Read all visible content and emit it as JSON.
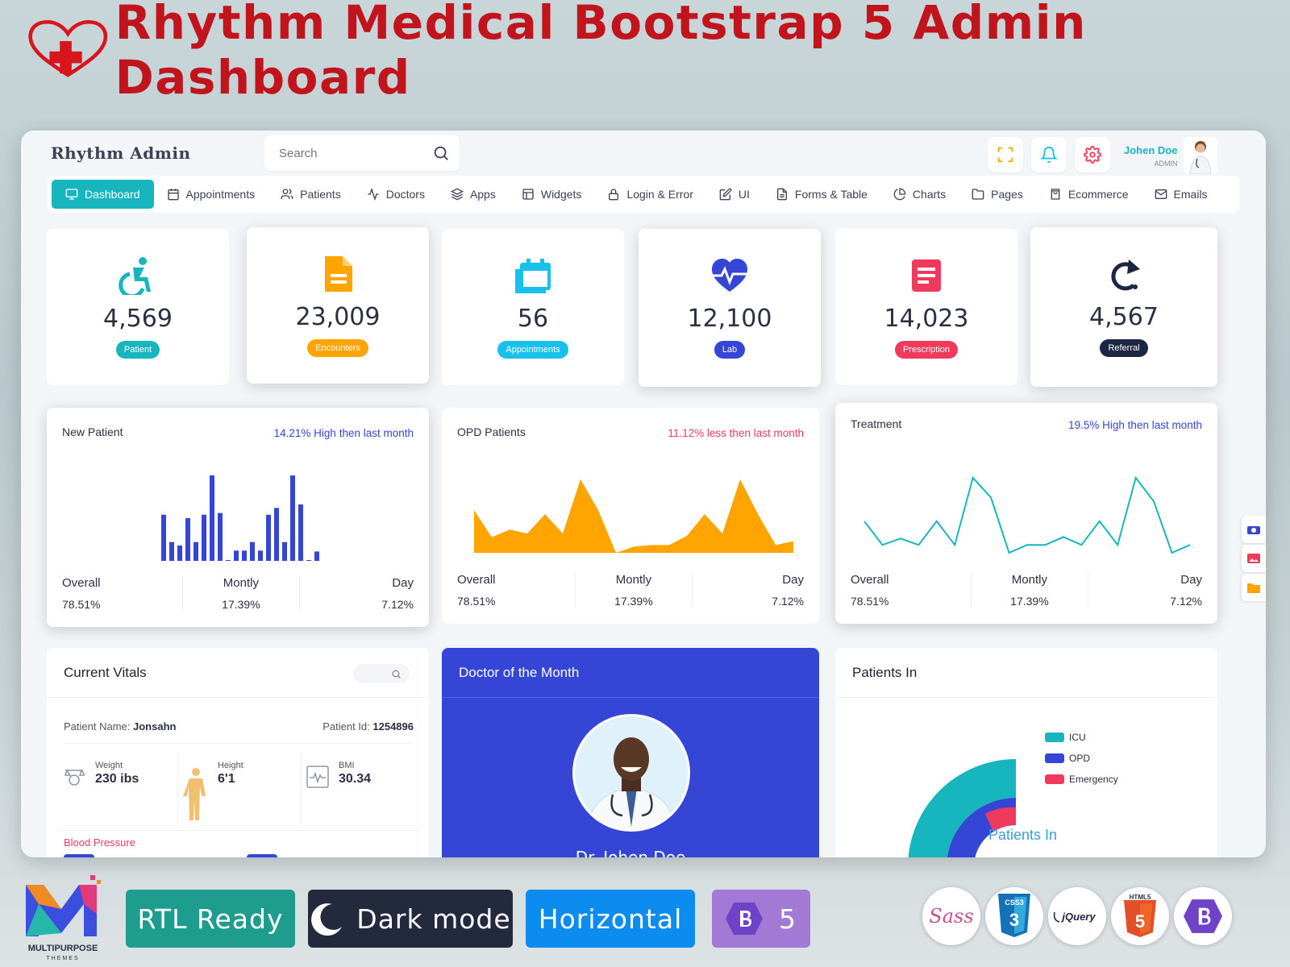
{
  "banner": {
    "title": "Rhythm Medical Bootstrap 5 Admin Dashboard"
  },
  "header": {
    "brand": "Rhythm Admin",
    "search_placeholder": "Search",
    "user_name": "Johen Doe",
    "user_role": "ADMIN"
  },
  "nav": [
    {
      "label": "Dashboard",
      "icon": "monitor-icon",
      "active": true
    },
    {
      "label": "Appointments",
      "icon": "calendar-icon"
    },
    {
      "label": "Patients",
      "icon": "users-icon"
    },
    {
      "label": "Doctors",
      "icon": "activity-icon"
    },
    {
      "label": "Apps",
      "icon": "layers-icon"
    },
    {
      "label": "Widgets",
      "icon": "grid-icon"
    },
    {
      "label": "Login & Error",
      "icon": "lock-icon"
    },
    {
      "label": "UI",
      "icon": "edit-icon"
    },
    {
      "label": "Forms & Table",
      "icon": "file-icon"
    },
    {
      "label": "Charts",
      "icon": "pie-chart-icon"
    },
    {
      "label": "Pages",
      "icon": "folder-icon"
    },
    {
      "label": "Ecommerce",
      "icon": "bag-icon"
    },
    {
      "label": "Emails",
      "icon": "mail-icon"
    }
  ],
  "stats": [
    {
      "value": "4,569",
      "label": "Patient",
      "color": "#17b6bf",
      "icon": "wheelchair-icon"
    },
    {
      "value": "23,009",
      "label": "Encounters",
      "color": "#ffa400",
      "icon": "document-icon"
    },
    {
      "value": "56",
      "label": "Appointments",
      "color": "#19c0ec",
      "icon": "calendar-icon"
    },
    {
      "value": "12,100",
      "label": "Lab",
      "color": "#3545d6",
      "icon": "heartbeat-icon"
    },
    {
      "value": "14,023",
      "label": "Prescription",
      "color": "#ef3a5d",
      "icon": "prescription-icon"
    },
    {
      "value": "4,567",
      "label": "Referral",
      "color": "#1d2642",
      "icon": "redo-icon"
    }
  ],
  "charts": {
    "new_patient": {
      "title": "New Patient",
      "subtitle": "14.21% High then last month",
      "subtitle_color": "#3545d6",
      "overall_label": "Overall",
      "overall": "78.51%",
      "monthly_label": "Montly",
      "monthly": "17.39%",
      "day_label": "Day",
      "day": "7.12%"
    },
    "opd": {
      "title": "OPD Patients",
      "subtitle": "11.12% less then last month",
      "subtitle_color": "#ef3a5d",
      "overall_label": "Overall",
      "overall": "78.51%",
      "monthly_label": "Montly",
      "monthly": "17.39%",
      "day_label": "Day",
      "day": "7.12%"
    },
    "treatment": {
      "title": "Treatment",
      "subtitle": "19.5% High then last month",
      "subtitle_color": "#3545d6",
      "overall_label": "Overall",
      "overall": "78.51%",
      "monthly_label": "Montly",
      "monthly": "17.39%",
      "day_label": "Day",
      "day": "7.12%"
    }
  },
  "chart_data": [
    {
      "type": "bar",
      "title": "New Patient",
      "color": "#3545d6",
      "values": [
        54,
        22,
        18,
        50,
        22,
        54,
        100,
        56,
        0,
        12,
        12,
        22,
        12,
        54,
        62,
        22,
        100,
        66,
        0,
        11
      ]
    },
    {
      "type": "area",
      "title": "OPD Patients",
      "color": "#ffa400",
      "values": [
        55,
        20,
        30,
        25,
        50,
        25,
        95,
        55,
        0,
        8,
        10,
        10,
        22,
        50,
        25,
        95,
        50,
        10,
        15
      ]
    },
    {
      "type": "line",
      "title": "Treatment",
      "color": "#17b6bf",
      "values": [
        40,
        10,
        18,
        10,
        40,
        10,
        95,
        70,
        0,
        10,
        10,
        20,
        10,
        40,
        10,
        95,
        65,
        0,
        10
      ]
    }
  ],
  "vitals": {
    "title": "Current Vitals",
    "patient_name_label": "Patient Name:",
    "patient_name": "Jonsahn",
    "patient_id_label": "Patient Id:",
    "patient_id": "1254896",
    "weight_label": "Weight",
    "weight": "230 ibs",
    "height_label": "Height",
    "height": "6'1",
    "bmi_label": "BMI",
    "bmi": "30.34",
    "bp_label": "Blood Pressure"
  },
  "doctor": {
    "title": "Doctor of the Month",
    "name": "Dr. Johen Doe"
  },
  "patients_in": {
    "title": "Patients In",
    "center_label": "Patients In",
    "legend": [
      {
        "label": "ICU",
        "color": "#17b6bf"
      },
      {
        "label": "OPD",
        "color": "#3545d6"
      },
      {
        "label": "Emergency",
        "color": "#ef3a5d"
      }
    ]
  },
  "footer": {
    "pills": [
      {
        "label": "RTL Ready",
        "color": "#1e9c8e"
      },
      {
        "label": "Dark mode",
        "color": "#232a3e"
      },
      {
        "label": "Horizontal",
        "color": "#0d8cf0"
      },
      {
        "label": "5",
        "color": "#a27ad6"
      }
    ],
    "company": "MULTIPURPOSE",
    "company_sub": "THEMES",
    "tech": [
      "Sass",
      "CSS3",
      "jQuery",
      "HTML5",
      "Bootstrap"
    ]
  }
}
